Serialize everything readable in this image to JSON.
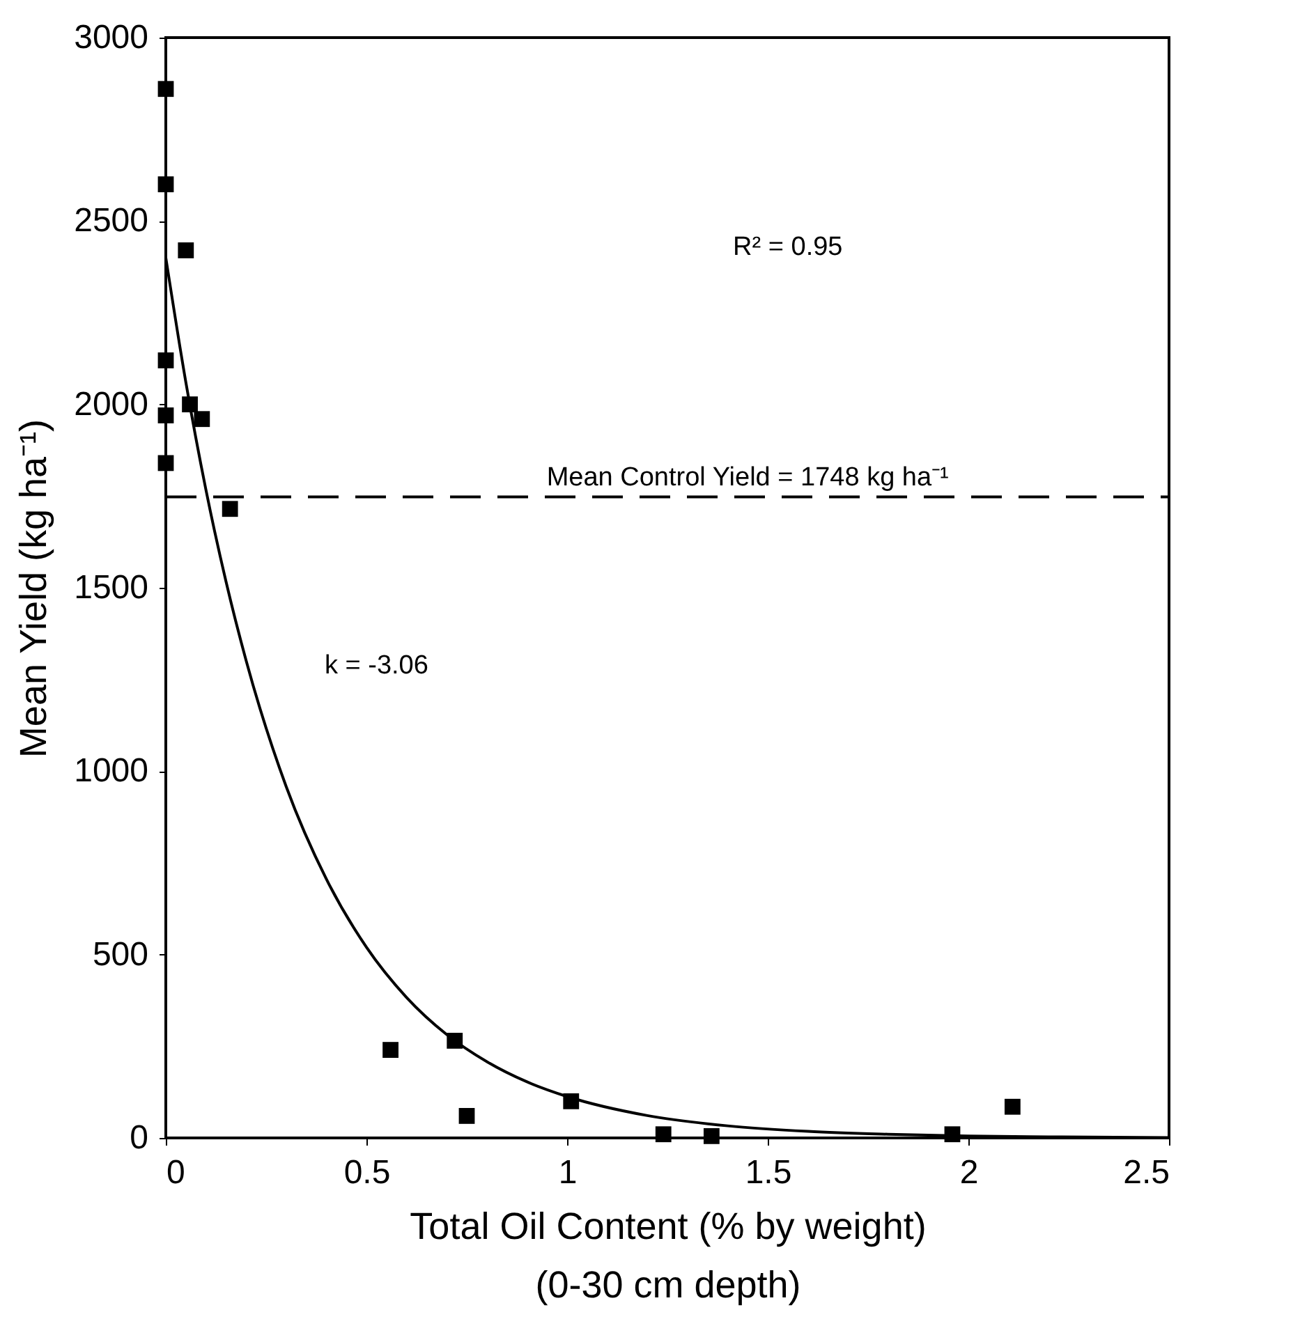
{
  "chart_data": {
    "type": "scatter",
    "xlabel": "Total Oil Content (% by weight)\n(0-30 cm depth)",
    "ylabel": "Mean Yield (kg ha⁻¹)",
    "xlim": [
      0,
      2.5
    ],
    "ylim": [
      0,
      3000
    ],
    "xticks": [
      0,
      0.5,
      1,
      1.5,
      2,
      2.5
    ],
    "yticks": [
      0,
      500,
      1000,
      1500,
      2000,
      2500,
      3000
    ],
    "grid": false,
    "series": [
      {
        "marker": "square",
        "color": "#000000",
        "x": [
          0,
          0,
          0.05,
          0,
          0,
          0.06,
          0.09,
          0,
          0.16,
          0.56,
          0.72,
          0.75,
          1.01,
          1.24,
          1.36,
          1.96,
          2.11
        ],
        "values": [
          2860,
          2600,
          2420,
          2120,
          1970,
          2000,
          1960,
          1840,
          1715,
          240,
          265,
          60,
          100,
          10,
          5,
          10,
          85
        ]
      },
      {
        "type": "line",
        "color": "#000000",
        "line_style": "solid",
        "x": [
          0,
          0.05,
          0.1,
          0.15,
          0.2,
          0.3,
          0.4,
          0.5,
          0.6,
          0.7,
          0.8,
          0.9,
          1.0,
          1.2,
          1.4,
          1.6,
          1.8,
          2.0,
          2.2,
          2.5
        ],
        "values": [
          2400,
          2060,
          1767,
          1517,
          1302,
          958,
          706,
          520,
          383,
          282,
          208,
          153,
          113,
          61,
          33,
          18,
          10,
          5,
          3,
          1
        ]
      }
    ],
    "ref_lines": [
      {
        "axis": "y",
        "value": 1748,
        "label": "Mean Control Yield = 1748 kg ha⁻¹",
        "line_style": "dashed",
        "color": "#000000"
      }
    ],
    "annotations": [
      "R² = 0.95",
      "k = -3.06"
    ]
  }
}
